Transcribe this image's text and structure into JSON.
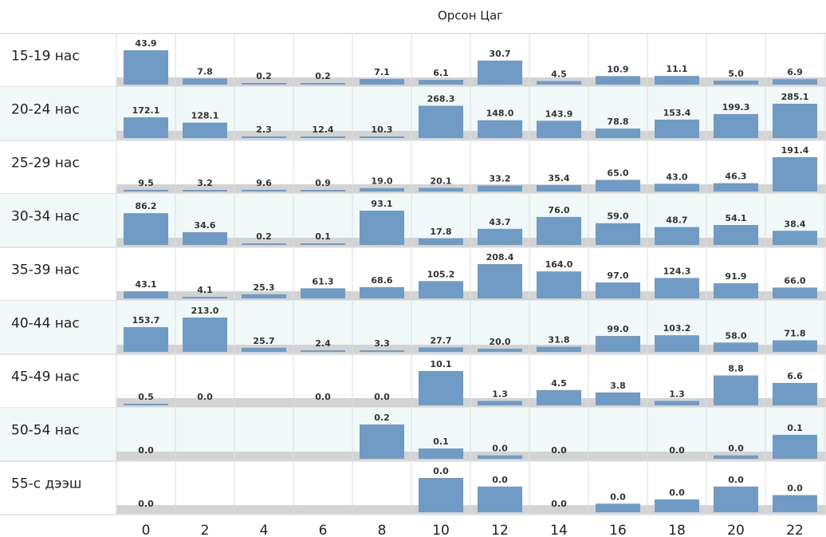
{
  "chart_data": {
    "type": "bar",
    "title": "Орсон Цаг",
    "categories": [
      0,
      2,
      4,
      6,
      8,
      10,
      12,
      14,
      16,
      18,
      20,
      22
    ],
    "color": "#6f9bc5",
    "rows": [
      {
        "name": "15-19 нас",
        "values": [
          43.9,
          7.8,
          0.2,
          0.2,
          7.1,
          6.1,
          30.7,
          4.5,
          10.9,
          11.1,
          5.0,
          6.9
        ],
        "value_labels": [
          "43.9",
          "7.8",
          "0.2",
          "0.2",
          "7.1",
          "6.1",
          "30.7",
          "4.5",
          "10.9",
          "11.1",
          "5.0",
          "6.9"
        ]
      },
      {
        "name": "20-24 нас",
        "values": [
          172.1,
          128.1,
          2.3,
          12.4,
          10.3,
          268.3,
          148.0,
          143.9,
          78.8,
          153.4,
          199.3,
          285.1
        ],
        "value_labels": [
          "172.1",
          "128.1",
          "2.3",
          "12.4",
          "10.3",
          "268.3",
          "148.0",
          "143.9",
          "78.8",
          "153.4",
          "199.3",
          "285.1"
        ]
      },
      {
        "name": "25-29 нас",
        "values": [
          9.5,
          3.2,
          9.6,
          0.9,
          19.0,
          20.1,
          33.2,
          35.4,
          65.0,
          43.0,
          46.3,
          191.4
        ],
        "value_labels": [
          "9.5",
          "3.2",
          "9.6",
          "0.9",
          "19.0",
          "20.1",
          "33.2",
          "35.4",
          "65.0",
          "43.0",
          "46.3",
          "191.4"
        ]
      },
      {
        "name": "30-34 нас",
        "values": [
          86.2,
          34.6,
          0.2,
          0.1,
          93.1,
          17.8,
          43.7,
          76.0,
          59.0,
          48.7,
          54.1,
          38.4
        ],
        "value_labels": [
          "86.2",
          "34.6",
          "0.2",
          "0.1",
          "93.1",
          "17.8",
          "43.7",
          "76.0",
          "59.0",
          "48.7",
          "54.1",
          "38.4"
        ]
      },
      {
        "name": "35-39 нас",
        "values": [
          43.1,
          4.1,
          25.3,
          61.3,
          68.6,
          105.2,
          208.4,
          164.0,
          97.0,
          124.3,
          91.9,
          66.0
        ],
        "value_labels": [
          "43.1",
          "4.1",
          "25.3",
          "61.3",
          "68.6",
          "105.2",
          "208.4",
          "164.0",
          "97.0",
          "124.3",
          "91.9",
          "66.0"
        ]
      },
      {
        "name": "40-44 нас",
        "values": [
          153.7,
          213.0,
          25.7,
          2.4,
          3.3,
          27.7,
          20.0,
          31.8,
          99.0,
          103.2,
          58.0,
          71.8
        ],
        "value_labels": [
          "153.7",
          "213.0",
          "25.7",
          "2.4",
          "3.3",
          "27.7",
          "20.0",
          "31.8",
          "99.0",
          "103.2",
          "58.0",
          "71.8"
        ]
      },
      {
        "name": "45-49 нас",
        "values": [
          0.5,
          0.0,
          null,
          0.0,
          0.0,
          10.1,
          1.3,
          4.5,
          3.8,
          1.3,
          8.8,
          6.6
        ],
        "value_labels": [
          "0.5",
          "0.0",
          null,
          "0.0",
          "0.0",
          "10.1",
          "1.3",
          "4.5",
          "3.8",
          "1.3",
          "8.8",
          "6.6"
        ]
      },
      {
        "name": "50-54 нас",
        "values": [
          0.0,
          null,
          null,
          null,
          0.2,
          0.06,
          0.02,
          0.0,
          null,
          0.0,
          0.02,
          0.14
        ],
        "value_labels": [
          "0.0",
          null,
          null,
          null,
          "0.2",
          "0.1",
          "0.0",
          "0.0",
          null,
          "0.0",
          "0.0",
          "0.1"
        ]
      },
      {
        "name": "55-с дээш",
        "values": [
          0.0,
          null,
          null,
          null,
          null,
          0.04,
          0.03,
          0.0,
          0.01,
          0.015,
          0.03,
          0.02
        ],
        "value_labels": [
          "0.0",
          null,
          null,
          null,
          null,
          "0.0",
          "0.0",
          "0.0",
          "0.0",
          "0.0",
          "0.0",
          "0.0"
        ]
      }
    ]
  }
}
